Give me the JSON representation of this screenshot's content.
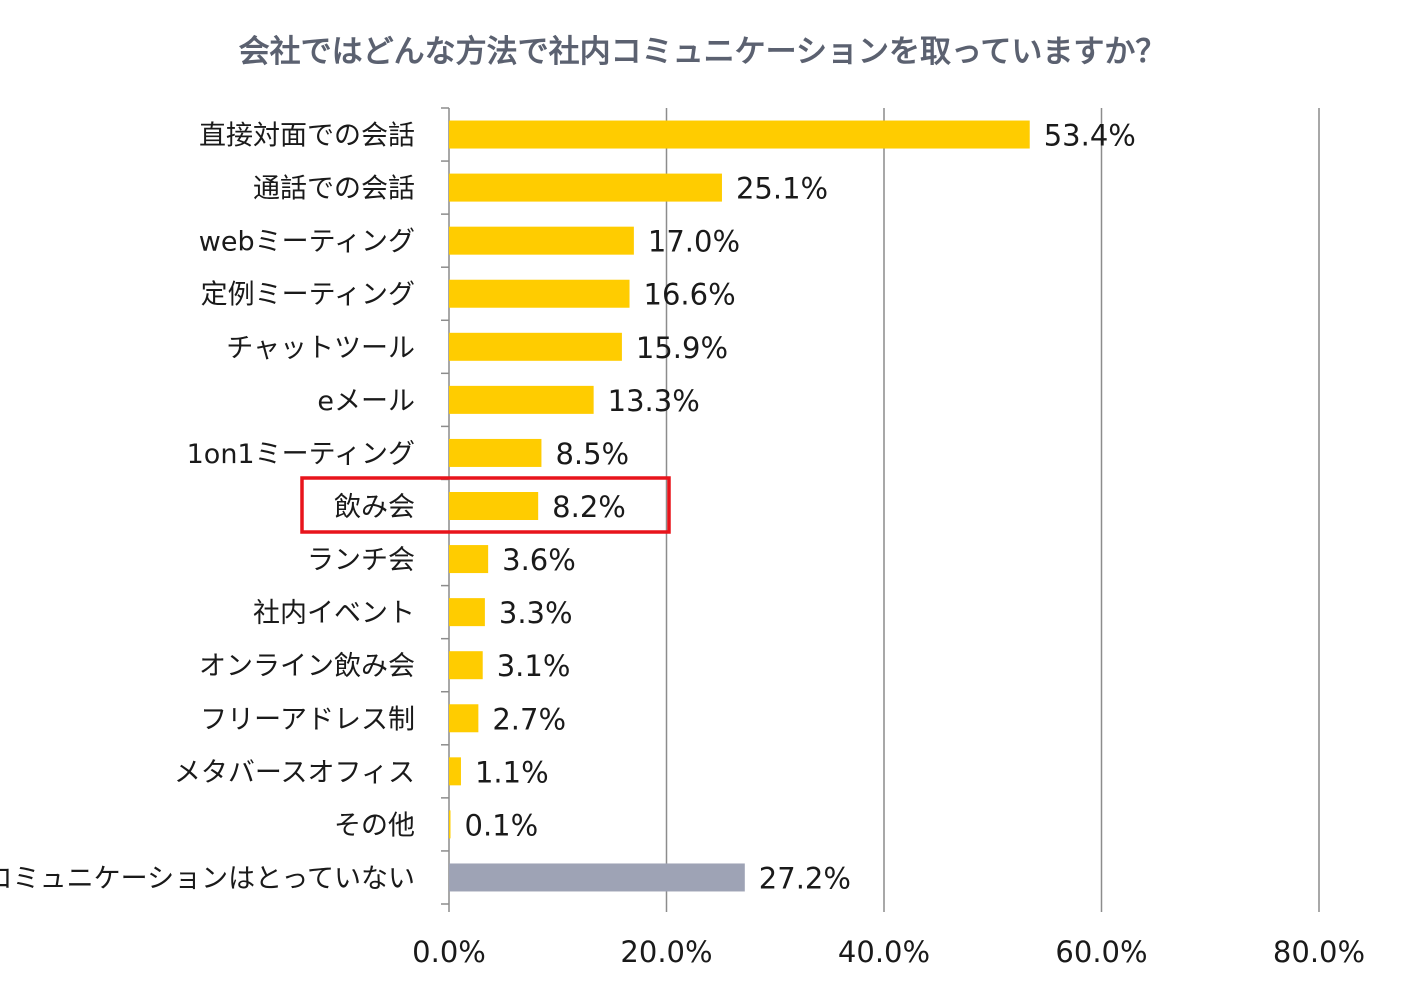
{
  "chart_data": {
    "type": "bar",
    "orientation": "horizontal",
    "title": "会社ではどんな方法で社内コミュニケーションを取っていますか？",
    "categories": [
      "直接対面での会話",
      "通話での会話",
      "webミーティング",
      "定例ミーティング",
      "チャットツール",
      "eメール",
      "1on1ミーティング",
      "飲み会",
      "ランチ会",
      "社内イベント",
      "オンライン飲み会",
      "フリーアドレス制",
      "メタバースオフィス",
      "その他",
      "コミュニケーションはとっていない"
    ],
    "values": [
      53.4,
      25.1,
      17.0,
      16.6,
      15.9,
      13.3,
      8.5,
      8.2,
      3.6,
      3.3,
      3.1,
      2.7,
      1.1,
      0.1,
      27.2
    ],
    "value_labels": [
      "53.4%",
      "25.1%",
      "17.0%",
      "16.6%",
      "15.9%",
      "13.3%",
      "8.5%",
      "8.2%",
      "3.6%",
      "3.3%",
      "3.1%",
      "2.7%",
      "1.1%",
      "0.1%",
      "27.2%"
    ],
    "bar_colors": [
      "#ffcc00",
      "#ffcc00",
      "#ffcc00",
      "#ffcc00",
      "#ffcc00",
      "#ffcc00",
      "#ffcc00",
      "#ffcc00",
      "#ffcc00",
      "#ffcc00",
      "#ffcc00",
      "#ffcc00",
      "#ffcc00",
      "#ffcc00",
      "#9ea3b5"
    ],
    "xlim": [
      0,
      80
    ],
    "xticks": [
      0,
      20,
      40,
      60,
      80
    ],
    "xtick_labels": [
      "0.0%",
      "20.0%",
      "40.0%",
      "60.0%",
      "80.0%"
    ],
    "xlabel": "",
    "ylabel": "",
    "grid": "vertical",
    "legend": "none",
    "highlighted_category": "飲み会",
    "highlight_color": "#e8141b"
  }
}
